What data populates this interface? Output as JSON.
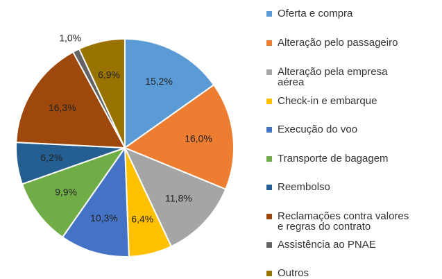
{
  "chart_data": {
    "type": "pie",
    "categories": [
      "Oferta e compra",
      "Alteração pelo passageiro",
      "Alteração pela empresa aérea",
      "Check-in e embarque",
      "Execução do voo",
      "Transporte de bagagem",
      "Reembolso",
      "Reclamações contra valores e regras do contrato",
      "Assistência ao PNAE",
      "Outros"
    ],
    "values": [
      15.2,
      16.0,
      11.8,
      6.4,
      10.3,
      9.9,
      6.2,
      16.3,
      1.0,
      6.9
    ],
    "value_labels": [
      "15,2%",
      "16,0%",
      "11,8%",
      "6,4%",
      "10,3%",
      "9,9%",
      "6,2%",
      "16,3%",
      "1,0%",
      "6,9%"
    ],
    "colors": [
      "#5b9bd5",
      "#ed7d31",
      "#a5a5a5",
      "#ffc000",
      "#4472c4",
      "#70ad47",
      "#255e91",
      "#9e480e",
      "#636363",
      "#997300"
    ],
    "legend": "right"
  }
}
